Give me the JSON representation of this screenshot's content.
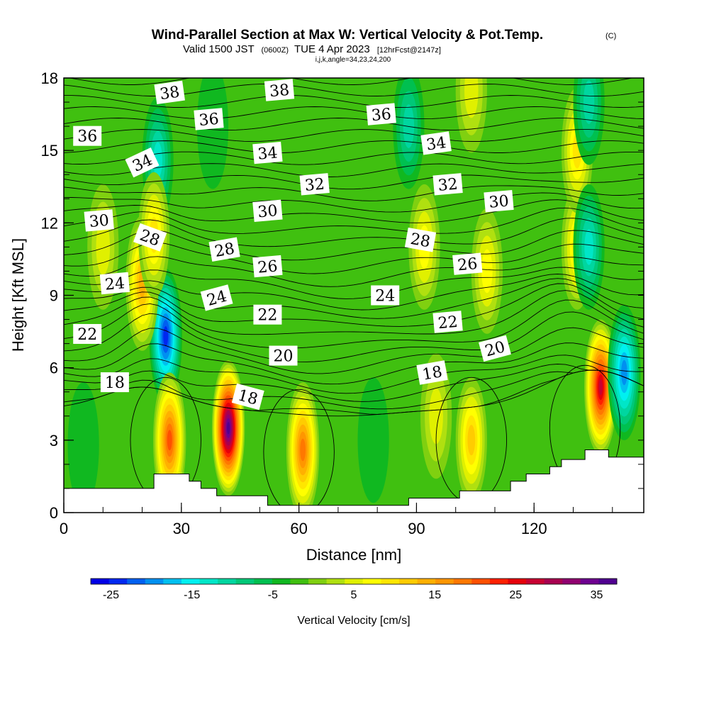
{
  "header": {
    "title": "Wind-Parallel Section at Max W: Vertical Velocity & Pot.Temp.",
    "title_mark": "(C)",
    "valid_prefix": "Valid 1500 JST",
    "valid_utc": "(0600Z)",
    "valid_date": "TUE 4 Apr 2023",
    "valid_fcst": "[12hrFcst@2147z]",
    "params": "i,j,k,angle=34,23,24,200"
  },
  "chart_data": {
    "type": "heatmap",
    "xlabel": "Distance [nm]",
    "ylabel": "Height [Kft MSL]",
    "xlim": [
      0,
      148
    ],
    "ylim": [
      0,
      18
    ],
    "x_ticks": [
      "0",
      "30",
      "60",
      "90",
      "120"
    ],
    "x_tick_values": [
      0,
      30,
      60,
      90,
      120
    ],
    "y_ticks": [
      "0",
      "3",
      "6",
      "9",
      "12",
      "15",
      "18"
    ],
    "y_tick_values": [
      0,
      3,
      6,
      9,
      12,
      15,
      18
    ],
    "colorbar": {
      "label": "Vertical Velocity [cm/s]",
      "tick_labels": [
        "-25",
        "-15",
        "-5",
        "5",
        "15",
        "25",
        "35"
      ],
      "tick_values": [
        -25,
        -15,
        -5,
        5,
        15,
        25,
        35
      ],
      "range": [
        -27.5,
        37.5
      ],
      "colors": [
        "#0000e6",
        "#0028f0",
        "#0060f0",
        "#0090f0",
        "#00c0f0",
        "#00f0f0",
        "#00e6c8",
        "#00d6a0",
        "#00c878",
        "#00c050",
        "#10b820",
        "#40c010",
        "#80d010",
        "#b0e010",
        "#e0f000",
        "#ffff00",
        "#ffe600",
        "#ffcc00",
        "#ffb000",
        "#ff9600",
        "#ff7800",
        "#ff5000",
        "#ff2000",
        "#e6000a",
        "#c80032",
        "#a80050",
        "#900070",
        "#6e0090",
        "#500090"
      ]
    },
    "background_value": -2,
    "vertical_velocity_features": [
      {
        "x": 26,
        "y": 7.3,
        "value": -25
      },
      {
        "x": 24,
        "y": 14.6,
        "value": -12
      },
      {
        "x": 20,
        "y": 9.5,
        "value": 15
      },
      {
        "x": 23,
        "y": 11.5,
        "value": 10
      },
      {
        "x": 27,
        "y": 3,
        "value": 20
      },
      {
        "x": 42,
        "y": 3.5,
        "value": 37
      },
      {
        "x": 61,
        "y": 2.6,
        "value": 18
      },
      {
        "x": 104,
        "y": 3,
        "value": 12
      },
      {
        "x": 108,
        "y": 10,
        "value": 8
      },
      {
        "x": 92,
        "y": 11,
        "value": 8
      },
      {
        "x": 137,
        "y": 5.2,
        "value": 27
      },
      {
        "x": 143,
        "y": 5.8,
        "value": -20
      },
      {
        "x": 131,
        "y": 11,
        "value": 9
      },
      {
        "x": 131,
        "y": 15,
        "value": 9
      },
      {
        "x": 134,
        "y": 11,
        "value": -12
      },
      {
        "x": 134,
        "y": 17,
        "value": -10
      },
      {
        "x": 104,
        "y": 17.5,
        "value": 6
      },
      {
        "x": 38,
        "y": 16,
        "value": -5
      },
      {
        "x": 10,
        "y": 11,
        "value": 6
      },
      {
        "x": 5,
        "y": 2.8,
        "value": -5
      },
      {
        "x": 95,
        "y": 4,
        "value": 4
      },
      {
        "x": 79,
        "y": 3,
        "value": -5
      },
      {
        "x": 88,
        "y": 16,
        "value": -10
      }
    ],
    "pot_temp_label_values": [
      "38",
      "38",
      "36",
      "36",
      "36",
      "34",
      "34",
      "34",
      "32",
      "32",
      "30",
      "30",
      "30",
      "28",
      "28",
      "28",
      "26",
      "26",
      "24",
      "24",
      "24",
      "22",
      "22",
      "22",
      "20",
      "20",
      "18",
      "18",
      "18"
    ],
    "terrain_profile": [
      [
        0,
        1.0
      ],
      [
        23,
        1.0
      ],
      [
        23,
        1.6
      ],
      [
        32,
        1.6
      ],
      [
        32,
        1.3
      ],
      [
        35,
        1.3
      ],
      [
        35,
        1.0
      ],
      [
        39,
        1.0
      ],
      [
        39,
        0.7
      ],
      [
        52,
        0.7
      ],
      [
        52,
        0.3
      ],
      [
        88,
        0.3
      ],
      [
        88,
        0.6
      ],
      [
        101,
        0.6
      ],
      [
        101,
        0.9
      ],
      [
        114,
        0.9
      ],
      [
        114,
        1.3
      ],
      [
        118,
        1.3
      ],
      [
        118,
        1.6
      ],
      [
        124,
        1.6
      ],
      [
        124,
        1.9
      ],
      [
        127,
        1.9
      ],
      [
        127,
        2.2
      ],
      [
        133,
        2.2
      ],
      [
        133,
        2.6
      ],
      [
        139,
        2.6
      ],
      [
        139,
        2.3
      ],
      [
        148,
        2.3
      ]
    ]
  }
}
